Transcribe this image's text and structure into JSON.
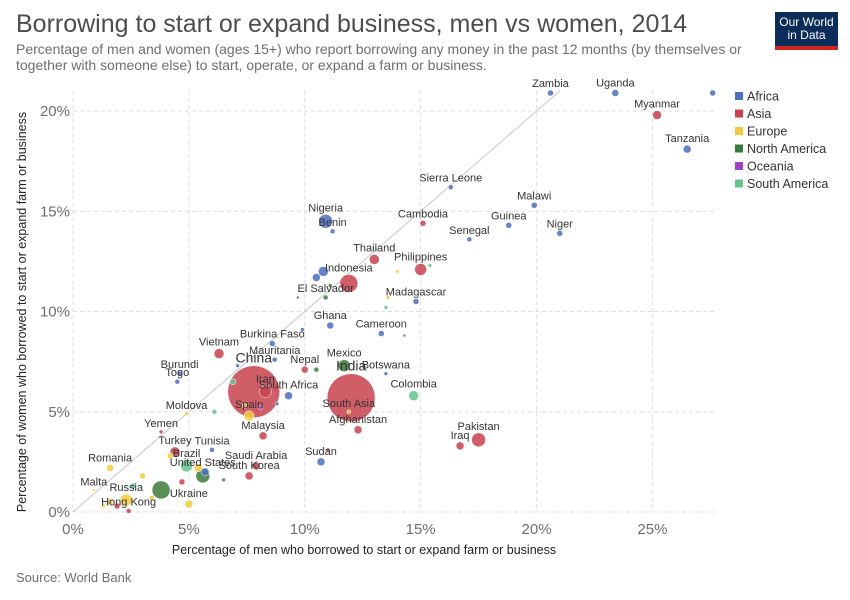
{
  "header": {
    "title": "Borrowing to start or expand business, men vs women, 2014",
    "subtitle": "Percentage of men and women (ages 15+) who report borrowing any money in the past 12 months (by themselves or together with someone else) to start, operate, or expand a farm or business.",
    "logo_line1": "Our World",
    "logo_line2": "in Data"
  },
  "footer": {
    "source": "Source: World Bank"
  },
  "chart_data": {
    "type": "scatter",
    "xlabel": "Percentage of men who borrowed to start or expand farm or business",
    "ylabel": "Percentage of women who borrowed to start or expand farm or business",
    "xlim": [
      0,
      27.7
    ],
    "ylim": [
      0,
      21
    ],
    "x_ticks": [
      0,
      5,
      10,
      15,
      20,
      25
    ],
    "y_ticks": [
      0,
      5,
      10,
      15,
      20
    ],
    "tick_suffix": "%",
    "grid": true,
    "reference_line": "y = x",
    "legend_position": "right",
    "colors": {
      "Africa": "#4c6fbf",
      "Asia": "#c8424f",
      "Europe": "#f2cd3b",
      "North America": "#3c7a3c",
      "Oceania": "#a23ec4",
      "South America": "#66c58e"
    },
    "legend": [
      "Africa",
      "Asia",
      "Europe",
      "North America",
      "Oceania",
      "South America"
    ],
    "points": [
      {
        "label": "Zambia",
        "region": "Africa",
        "x": 20.6,
        "y": 20.9,
        "r": 3
      },
      {
        "label": "Uganda",
        "region": "Africa",
        "x": 23.4,
        "y": 20.9,
        "r": 3.5
      },
      {
        "label": "",
        "region": "Africa",
        "x": 27.6,
        "y": 20.9,
        "r": 3
      },
      {
        "label": "Myanmar",
        "region": "Asia",
        "x": 25.2,
        "y": 19.8,
        "r": 4.5
      },
      {
        "label": "Tanzania",
        "region": "Africa",
        "x": 26.5,
        "y": 18.1,
        "r": 4
      },
      {
        "label": "Sierra Leone",
        "region": "Africa",
        "x": 16.3,
        "y": 16.2,
        "r": 2.5
      },
      {
        "label": "Malawi",
        "region": "Africa",
        "x": 19.9,
        "y": 15.3,
        "r": 3
      },
      {
        "label": "Nigeria",
        "region": "Africa",
        "x": 10.9,
        "y": 14.5,
        "r": 7
      },
      {
        "label": "Cambodia",
        "region": "Asia",
        "x": 15.1,
        "y": 14.4,
        "r": 3
      },
      {
        "label": "Guinea",
        "region": "Africa",
        "x": 18.8,
        "y": 14.3,
        "r": 3
      },
      {
        "label": "Benin",
        "region": "Africa",
        "x": 11.2,
        "y": 14.0,
        "r": 2.5
      },
      {
        "label": "Niger",
        "region": "Africa",
        "x": 21.0,
        "y": 13.9,
        "r": 3
      },
      {
        "label": "Senegal",
        "region": "Africa",
        "x": 17.1,
        "y": 13.6,
        "r": 2.5
      },
      {
        "label": "Thailand",
        "region": "Asia",
        "x": 13.0,
        "y": 12.6,
        "r": 5
      },
      {
        "label": "Philippines",
        "region": "Asia",
        "x": 15.0,
        "y": 12.1,
        "r": 6
      },
      {
        "label": "",
        "region": "South America",
        "x": 15.4,
        "y": 12.3,
        "r": 2
      },
      {
        "label": "",
        "region": "Africa",
        "x": 10.8,
        "y": 12.0,
        "r": 5
      },
      {
        "label": "",
        "region": "Africa",
        "x": 10.5,
        "y": 11.7,
        "r": 4
      },
      {
        "label": "Indonesia",
        "region": "Asia",
        "x": 11.9,
        "y": 11.4,
        "r": 9
      },
      {
        "label": "",
        "region": "Europe",
        "x": 14.0,
        "y": 12.0,
        "r": 2
      },
      {
        "label": "",
        "region": "North America",
        "x": 11.1,
        "y": 11.3,
        "r": 2
      },
      {
        "label": "El Salvador",
        "region": "North America",
        "x": 10.9,
        "y": 10.7,
        "r": 2.5
      },
      {
        "label": "",
        "region": "Africa",
        "x": 9.7,
        "y": 10.7,
        "r": 1.5
      },
      {
        "label": "",
        "region": "Europe",
        "x": 13.6,
        "y": 10.7,
        "r": 2
      },
      {
        "label": "Madagascar",
        "region": "Africa",
        "x": 14.8,
        "y": 10.5,
        "r": 3
      },
      {
        "label": "",
        "region": "South America",
        "x": 13.5,
        "y": 10.2,
        "r": 2
      },
      {
        "label": "Ghana",
        "region": "Africa",
        "x": 11.1,
        "y": 9.3,
        "r": 3.5
      },
      {
        "label": "",
        "region": "Africa",
        "x": 9.9,
        "y": 9.1,
        "r": 2
      },
      {
        "label": "Cameroon",
        "region": "Africa",
        "x": 13.3,
        "y": 8.9,
        "r": 3
      },
      {
        "label": "",
        "region": "Africa",
        "x": 14.3,
        "y": 8.8,
        "r": 1.5
      },
      {
        "label": "Burkina Faso",
        "region": "Africa",
        "x": 8.6,
        "y": 8.4,
        "r": 3
      },
      {
        "label": "Vietnam",
        "region": "Asia",
        "x": 6.3,
        "y": 7.9,
        "r": 5
      },
      {
        "label": "Mauritania",
        "region": "Africa",
        "x": 8.7,
        "y": 7.6,
        "r": 2.5
      },
      {
        "label": "",
        "region": "Africa",
        "x": 7.1,
        "y": 7.3,
        "r": 2
      },
      {
        "label": "Nepal",
        "region": "Asia",
        "x": 10.0,
        "y": 7.1,
        "r": 3.5
      },
      {
        "label": "",
        "region": "North America",
        "x": 10.5,
        "y": 7.1,
        "r": 2.5
      },
      {
        "label": "Mexico",
        "region": "North America",
        "x": 11.7,
        "y": 7.3,
        "r": 6
      },
      {
        "label": "Botswana",
        "region": "Africa",
        "x": 13.5,
        "y": 6.9,
        "r": 2
      },
      {
        "label": "Burundi",
        "region": "Africa",
        "x": 4.6,
        "y": 6.9,
        "r": 2.5
      },
      {
        "label": "Togo",
        "region": "Africa",
        "x": 4.5,
        "y": 6.5,
        "r": 2.5
      },
      {
        "label": "",
        "region": "South America",
        "x": 6.9,
        "y": 6.5,
        "r": 3
      },
      {
        "label": "China",
        "region": "Asia",
        "x": 7.8,
        "y": 6.0,
        "r": 26
      },
      {
        "label": "Iran",
        "region": "Asia",
        "x": 8.3,
        "y": 6.0,
        "r": 6
      },
      {
        "label": "South Africa",
        "region": "Africa",
        "x": 9.3,
        "y": 5.8,
        "r": 4
      },
      {
        "label": "India",
        "region": "Asia",
        "x": 12.0,
        "y": 5.7,
        "r": 24
      },
      {
        "label": "South Asia",
        "region": "Europe",
        "x": 11.9,
        "y": 5.0,
        "r": 2
      },
      {
        "label": "Colombia",
        "region": "South America",
        "x": 14.7,
        "y": 5.8,
        "r": 5
      },
      {
        "label": "",
        "region": "Africa",
        "x": 8.8,
        "y": 5.4,
        "r": 2
      },
      {
        "label": "",
        "region": "Oceania",
        "x": 8.1,
        "y": 5.2,
        "r": 2
      },
      {
        "label": "Moldova",
        "region": "Europe",
        "x": 4.9,
        "y": 4.9,
        "r": 2
      },
      {
        "label": "Spain",
        "region": "Europe",
        "x": 7.6,
        "y": 4.8,
        "r": 5
      },
      {
        "label": "",
        "region": "Europe",
        "x": 7.4,
        "y": 5.3,
        "r": 2.5
      },
      {
        "label": "",
        "region": "South America",
        "x": 6.1,
        "y": 5.0,
        "r": 2.5
      },
      {
        "label": "Yemen",
        "region": "Asia",
        "x": 3.8,
        "y": 4.0,
        "r": 2
      },
      {
        "label": "Afghanistan",
        "region": "Asia",
        "x": 12.3,
        "y": 4.1,
        "r": 4
      },
      {
        "label": "Malaysia",
        "region": "Asia",
        "x": 8.2,
        "y": 3.8,
        "r": 4
      },
      {
        "label": "Turkey",
        "region": "Asia",
        "x": 4.4,
        "y": 3.0,
        "r": 5
      },
      {
        "label": "Tunisia",
        "region": "Africa",
        "x": 6.0,
        "y": 3.1,
        "r": 2.5
      },
      {
        "label": "Pakistan",
        "region": "Asia",
        "x": 17.5,
        "y": 3.6,
        "r": 7
      },
      {
        "label": "Iraq",
        "region": "Asia",
        "x": 16.7,
        "y": 3.3,
        "r": 4
      },
      {
        "label": "",
        "region": "Asia",
        "x": 11.0,
        "y": 3.1,
        "r": 2
      },
      {
        "label": "Sudan",
        "region": "Africa",
        "x": 10.7,
        "y": 2.5,
        "r": 4
      },
      {
        "label": "Brazil",
        "region": "South America",
        "x": 4.9,
        "y": 2.3,
        "r": 6
      },
      {
        "label": "",
        "region": "Europe",
        "x": 4.2,
        "y": 2.8,
        "r": 3
      },
      {
        "label": "Saudi Arabia",
        "region": "Asia",
        "x": 7.9,
        "y": 2.3,
        "r": 4
      },
      {
        "label": "Romania",
        "region": "Europe",
        "x": 1.6,
        "y": 2.2,
        "r": 3.5
      },
      {
        "label": "",
        "region": "Europe",
        "x": 5.4,
        "y": 2.2,
        "r": 4
      },
      {
        "label": "United States",
        "region": "North America",
        "x": 5.6,
        "y": 1.8,
        "r": 7
      },
      {
        "label": "",
        "region": "Africa",
        "x": 5.7,
        "y": 2.0,
        "r": 4
      },
      {
        "label": "South Korea",
        "region": "Asia",
        "x": 7.6,
        "y": 1.8,
        "r": 4
      },
      {
        "label": "",
        "region": "Europe",
        "x": 3.0,
        "y": 1.8,
        "r": 3
      },
      {
        "label": "",
        "region": "Asia",
        "x": 4.7,
        "y": 1.5,
        "r": 3
      },
      {
        "label": "",
        "region": "Africa",
        "x": 6.5,
        "y": 1.6,
        "r": 2
      },
      {
        "label": "Malta",
        "region": "Europe",
        "x": 0.9,
        "y": 1.1,
        "r": 1.5
      },
      {
        "label": "",
        "region": "North America",
        "x": 3.8,
        "y": 1.1,
        "r": 9
      },
      {
        "label": "Russia",
        "region": "Europe",
        "x": 2.3,
        "y": 0.6,
        "r": 6
      },
      {
        "label": "",
        "region": "South America",
        "x": 2.6,
        "y": 1.3,
        "r": 3
      },
      {
        "label": "",
        "region": "Europe",
        "x": 1.6,
        "y": 0.5,
        "r": 3
      },
      {
        "label": "",
        "region": "Asia",
        "x": 1.9,
        "y": 0.3,
        "r": 3
      },
      {
        "label": "Ukraine",
        "region": "Europe",
        "x": 5.0,
        "y": 0.4,
        "r": 4
      },
      {
        "label": "Hong Kong",
        "region": "Asia",
        "x": 2.4,
        "y": 0.05,
        "r": 2.5
      },
      {
        "label": "",
        "region": "Europe",
        "x": 3.4,
        "y": 0.7,
        "r": 2.5
      },
      {
        "label": "",
        "region": "Europe",
        "x": 1.3,
        "y": 0.3,
        "r": 2
      }
    ]
  }
}
